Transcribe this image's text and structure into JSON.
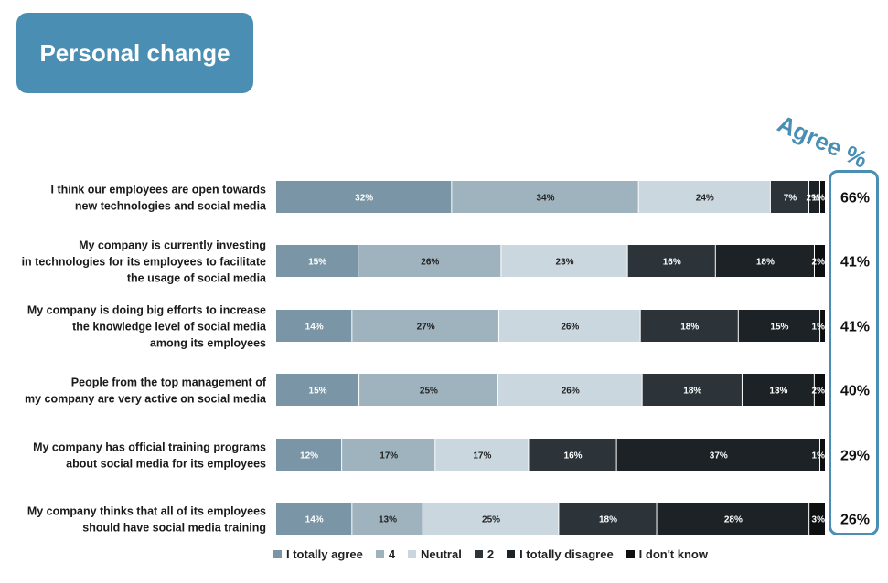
{
  "title": "Personal change",
  "agree_header": "Agree %",
  "chart_data": {
    "type": "bar",
    "orientation": "horizontal",
    "stacked": true,
    "categories": [
      [
        "I think our employees are open towards",
        "new technologies and social media"
      ],
      [
        "My company is currently investing",
        "in technologies for its employees to facilitate",
        "the usage of social media"
      ],
      [
        "My company is doing big efforts to increase",
        "the knowledge level of social media",
        "among its employees"
      ],
      [
        "People from the top management of",
        "my company are very active on social media"
      ],
      [
        "My company has official training programs",
        "about social media for its employees"
      ],
      [
        "My company thinks that all of its employees",
        "should have social media training"
      ]
    ],
    "series": [
      {
        "name": "I totally agree",
        "color": "#7a95a5",
        "values": [
          32,
          15,
          14,
          15,
          12,
          14
        ]
      },
      {
        "name": "4",
        "color": "#9fb3bf",
        "values": [
          34,
          26,
          27,
          25,
          17,
          13
        ]
      },
      {
        "name": "Neutral",
        "color": "#cbd7de",
        "values": [
          24,
          23,
          26,
          26,
          17,
          25
        ]
      },
      {
        "name": "2",
        "color": "#2c3439",
        "values": [
          7,
          16,
          18,
          18,
          16,
          18
        ]
      },
      {
        "name": "I totally disagree",
        "color": "#1d2226",
        "values": [
          2,
          18,
          15,
          13,
          37,
          28
        ]
      },
      {
        "name": "I don't know",
        "color": "#0d0f10",
        "values": [
          1,
          2,
          1,
          2,
          1,
          3
        ]
      }
    ],
    "agree_percent": [
      "66%",
      "41%",
      "41%",
      "40%",
      "29%",
      "26%"
    ],
    "legend_position": "bottom",
    "grid": false
  }
}
